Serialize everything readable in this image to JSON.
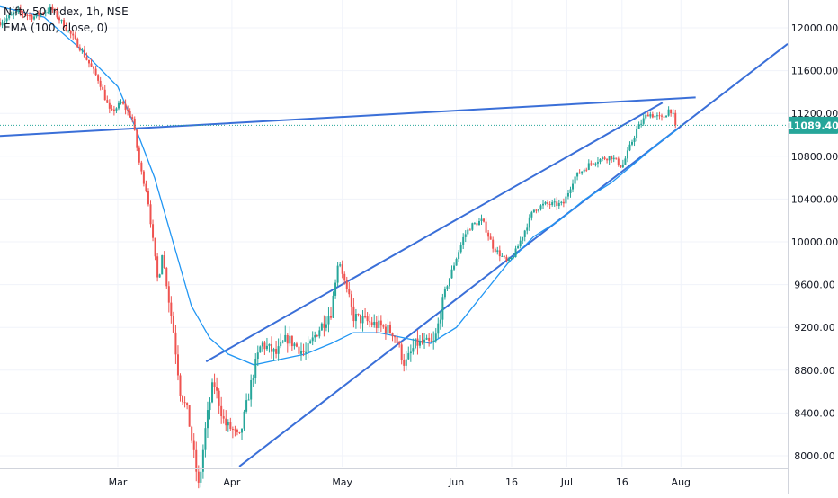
{
  "legend": {
    "symbol_line": "Nifty 50 Index, 1h, NSE",
    "indicator_line": "EMA (100, close, 0)"
  },
  "price_label": "11089.40",
  "colors": {
    "up": "#26a69a",
    "down": "#ef5350",
    "ema": "#2196f3",
    "trendline": "#3a6fd8",
    "price_line": "#26a69a",
    "price_tag": "#26a69a",
    "grid": "#f0f3fa",
    "axis_text": "#131722"
  },
  "chart_data": {
    "type": "candlestick",
    "title": "Nifty 50 Index, 1h, NSE",
    "ylim": [
      7900,
      12250
    ],
    "y_ticks": [
      8000,
      8400,
      8800,
      9200,
      9600,
      10000,
      10400,
      10800,
      11200,
      11600,
      12000
    ],
    "y_tick_labels": [
      "8000.00",
      "8400.00",
      "8800.00",
      "9200.00",
      "9600.00",
      "10000.00",
      "10400.00",
      "10800.00",
      "11200.00",
      "11600.00",
      "12000.00"
    ],
    "x_ticks": [
      "2020-03-01",
      "2020-04-01",
      "2020-05-01",
      "2020-06-01",
      "2020-06-16",
      "2020-07-01",
      "2020-07-16",
      "2020-08-01"
    ],
    "x_tick_labels": [
      "Mar",
      "Apr",
      "May",
      "Jun",
      "16",
      "Jul",
      "16",
      "Aug"
    ],
    "xlim": [
      "2020-01-29",
      "2020-08-30"
    ],
    "last_price": 11089.4,
    "price_path": [
      [
        "2020-01-29",
        12050
      ],
      [
        "2020-02-03",
        12150
      ],
      [
        "2020-02-07",
        12100
      ],
      [
        "2020-02-12",
        12180
      ],
      [
        "2020-02-17",
        11950
      ],
      [
        "2020-02-20",
        11800
      ],
      [
        "2020-02-25",
        11500
      ],
      [
        "2020-02-28",
        11200
      ],
      [
        "2020-03-02",
        11300
      ],
      [
        "2020-03-05",
        11150
      ],
      [
        "2020-03-07",
        10700
      ],
      [
        "2020-03-09",
        10450
      ],
      [
        "2020-03-12",
        9600
      ],
      [
        "2020-03-13",
        9900
      ],
      [
        "2020-03-16",
        9200
      ],
      [
        "2020-03-18",
        8600
      ],
      [
        "2020-03-20",
        8400
      ],
      [
        "2020-03-23",
        7700
      ],
      [
        "2020-03-25",
        8300
      ],
      [
        "2020-03-27",
        8700
      ],
      [
        "2020-03-30",
        8300
      ],
      [
        "2020-04-01",
        8250
      ],
      [
        "2020-04-03",
        8150
      ],
      [
        "2020-04-07",
        8800
      ],
      [
        "2020-04-09",
        9050
      ],
      [
        "2020-04-13",
        8950
      ],
      [
        "2020-04-16",
        9100
      ],
      [
        "2020-04-21",
        8950
      ],
      [
        "2020-04-24",
        9150
      ],
      [
        "2020-04-28",
        9350
      ],
      [
        "2020-04-30",
        9850
      ],
      [
        "2020-05-04",
        9300
      ],
      [
        "2020-05-08",
        9250
      ],
      [
        "2020-05-12",
        9200
      ],
      [
        "2020-05-15",
        9150
      ],
      [
        "2020-05-18",
        8850
      ],
      [
        "2020-05-21",
        9050
      ],
      [
        "2020-05-26",
        9050
      ],
      [
        "2020-05-29",
        9550
      ],
      [
        "2020-06-03",
        10050
      ],
      [
        "2020-06-05",
        10150
      ],
      [
        "2020-06-08",
        10200
      ],
      [
        "2020-06-11",
        9950
      ],
      [
        "2020-06-15",
        9800
      ],
      [
        "2020-06-17",
        9900
      ],
      [
        "2020-06-22",
        10300
      ],
      [
        "2020-06-25",
        10350
      ],
      [
        "2020-06-30",
        10350
      ],
      [
        "2020-07-03",
        10600
      ],
      [
        "2020-07-08",
        10750
      ],
      [
        "2020-07-13",
        10800
      ],
      [
        "2020-07-16",
        10700
      ],
      [
        "2020-07-20",
        11050
      ],
      [
        "2020-07-23",
        11200
      ],
      [
        "2020-07-27",
        11150
      ],
      [
        "2020-07-29",
        11250
      ],
      [
        "2020-07-31",
        11089.4
      ]
    ],
    "ema": [
      [
        "2020-01-29",
        12200
      ],
      [
        "2020-02-10",
        12100
      ],
      [
        "2020-02-20",
        11800
      ],
      [
        "2020-03-01",
        11450
      ],
      [
        "2020-03-06",
        11050
      ],
      [
        "2020-03-11",
        10600
      ],
      [
        "2020-03-16",
        10000
      ],
      [
        "2020-03-21",
        9400
      ],
      [
        "2020-03-26",
        9100
      ],
      [
        "2020-03-31",
        8950
      ],
      [
        "2020-04-07",
        8850
      ],
      [
        "2020-04-14",
        8900
      ],
      [
        "2020-04-21",
        8950
      ],
      [
        "2020-04-28",
        9050
      ],
      [
        "2020-05-04",
        9150
      ],
      [
        "2020-05-11",
        9150
      ],
      [
        "2020-05-18",
        9100
      ],
      [
        "2020-05-25",
        9050
      ],
      [
        "2020-06-01",
        9200
      ],
      [
        "2020-06-08",
        9500
      ],
      [
        "2020-06-15",
        9800
      ],
      [
        "2020-06-22",
        10050
      ],
      [
        "2020-06-29",
        10200
      ],
      [
        "2020-07-06",
        10400
      ],
      [
        "2020-07-13",
        10550
      ],
      [
        "2020-07-20",
        10750
      ],
      [
        "2020-07-27",
        10950
      ],
      [
        "2020-07-31",
        11050
      ]
    ],
    "trendlines": [
      {
        "from": [
          "2020-01-29",
          10990
        ],
        "to": [
          "2020-08-05",
          11350
        ]
      },
      {
        "from": [
          "2020-03-25",
          8880
        ],
        "to": [
          "2020-07-27",
          11300
        ]
      },
      {
        "from": [
          "2020-04-03",
          7900
        ],
        "to": [
          "2020-08-30",
          11850
        ]
      }
    ]
  }
}
